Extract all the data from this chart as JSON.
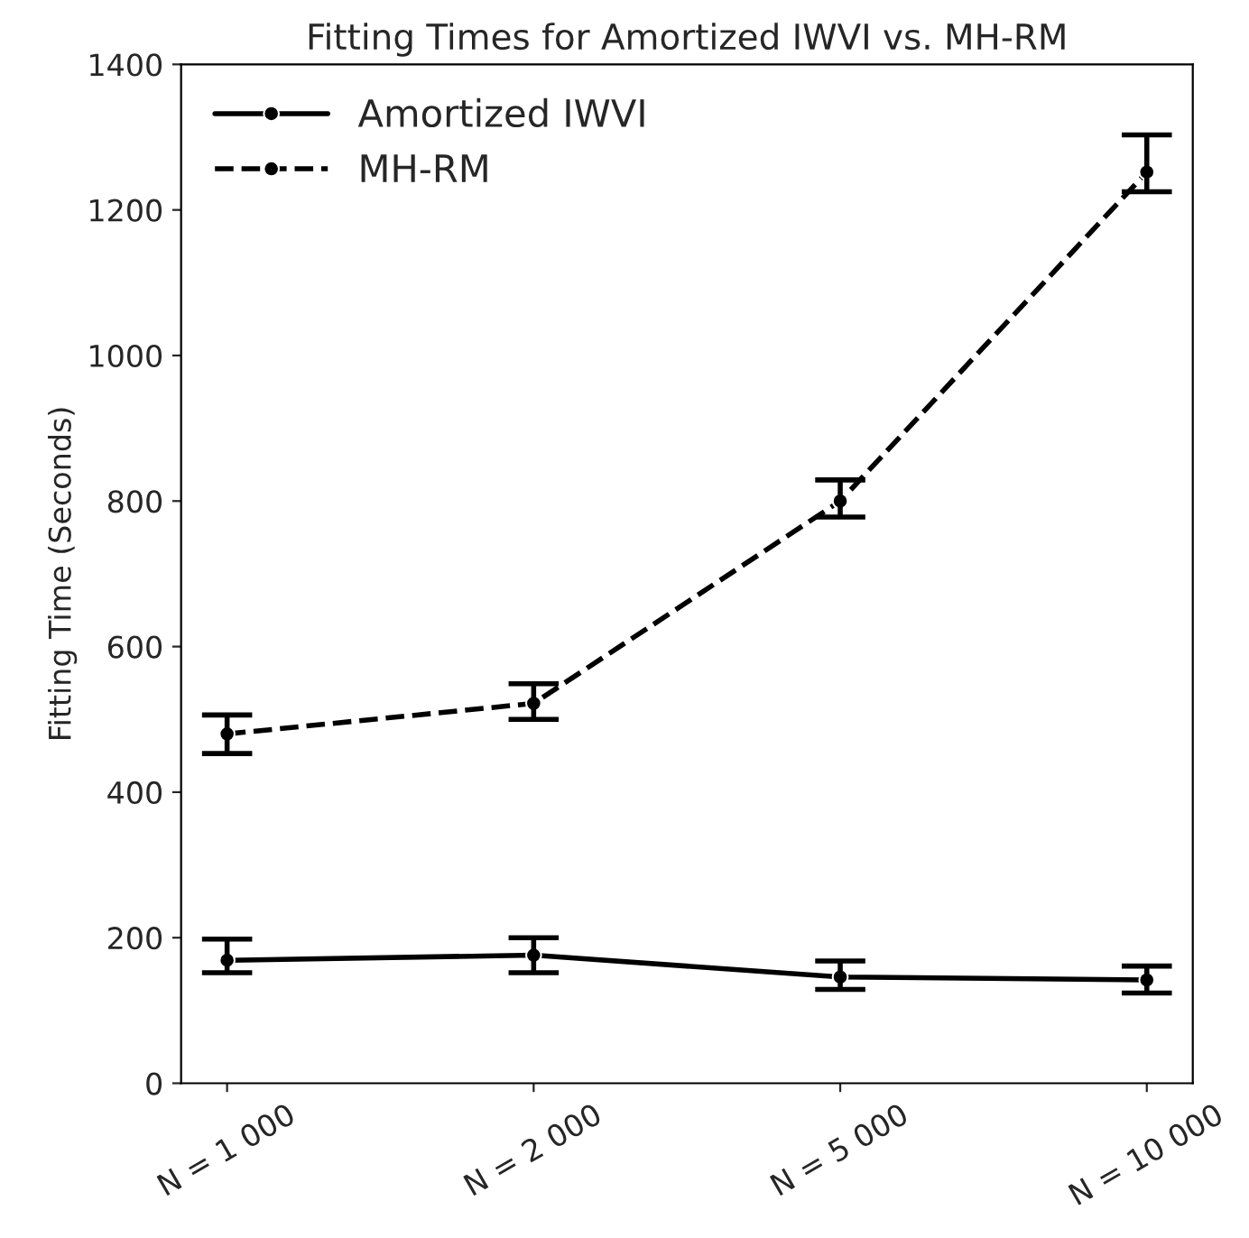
{
  "chart_data": {
    "type": "line",
    "title": "Fitting Times for Amortized IWVI vs. MH-RM",
    "ylabel": "Fitting Time (Seconds)",
    "categories": [
      "N = 1 000",
      "N = 2 000",
      "N = 5 000",
      "N = 10 000"
    ],
    "series": [
      {
        "name": "Amortized IWVI",
        "color": "#000000",
        "values": [
          169,
          176,
          146,
          142
        ],
        "errors": [
          [
            152,
            198
          ],
          [
            152,
            200
          ],
          [
            129,
            168
          ],
          [
            124,
            161
          ]
        ],
        "line_style": "solid"
      },
      {
        "name": "MH-RM",
        "color": "#000000",
        "values": [
          480,
          522,
          800,
          1252
        ],
        "errors": [
          [
            453,
            506
          ],
          [
            500,
            549
          ],
          [
            778,
            829
          ],
          [
            1225,
            1303
          ]
        ],
        "line_style": "dashed"
      }
    ],
    "ylim": [
      0,
      1400
    ],
    "yticks": [
      0,
      200,
      400,
      600,
      800,
      1000,
      1200,
      1400
    ],
    "marker": "circle",
    "legend": "top left",
    "grid": false
  }
}
